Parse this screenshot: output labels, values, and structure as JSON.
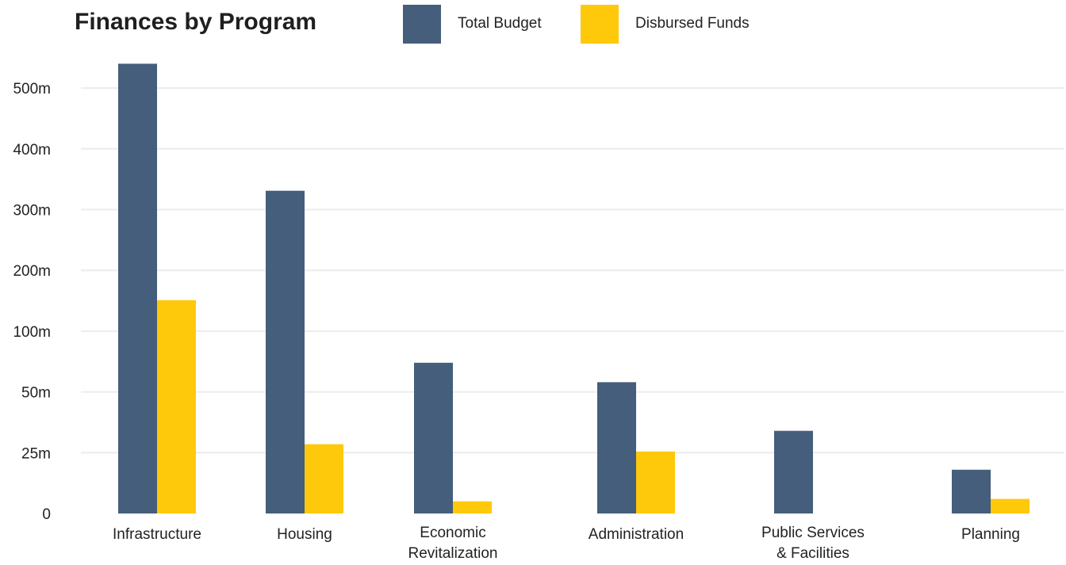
{
  "chart_data": {
    "type": "bar",
    "title": "Finances by Program",
    "xlabel": "",
    "ylabel": "",
    "scale": "piecewise",
    "categories": [
      "Infrastructure",
      "Housing",
      "Economic Revitalization",
      "Administration",
      "Public Services & Facilities",
      "Planning"
    ],
    "category_lines": [
      [
        "Infrastructure"
      ],
      [
        "Housing"
      ],
      [
        "Economic",
        "Revitalization"
      ],
      [
        "Administration"
      ],
      [
        "Public Services",
        "& Facilities"
      ],
      [
        "Planning"
      ]
    ],
    "yticks": [
      0,
      25,
      50,
      100,
      200,
      300,
      400,
      500
    ],
    "ytick_labels": [
      "0",
      "25m",
      "50m",
      "100m",
      "200m",
      "300m",
      "400m",
      "500m"
    ],
    "ylim": [
      0,
      540
    ],
    "grid": true,
    "legend_position": "top",
    "series": [
      {
        "name": "Total Budget",
        "color": "#445e7b",
        "values": [
          540,
          331,
          74,
          58,
          34,
          18
        ]
      },
      {
        "name": "Disbursed Funds",
        "color": "#ffc90b",
        "values": [
          151,
          28.5,
          5,
          25.5,
          0,
          6
        ]
      }
    ]
  }
}
